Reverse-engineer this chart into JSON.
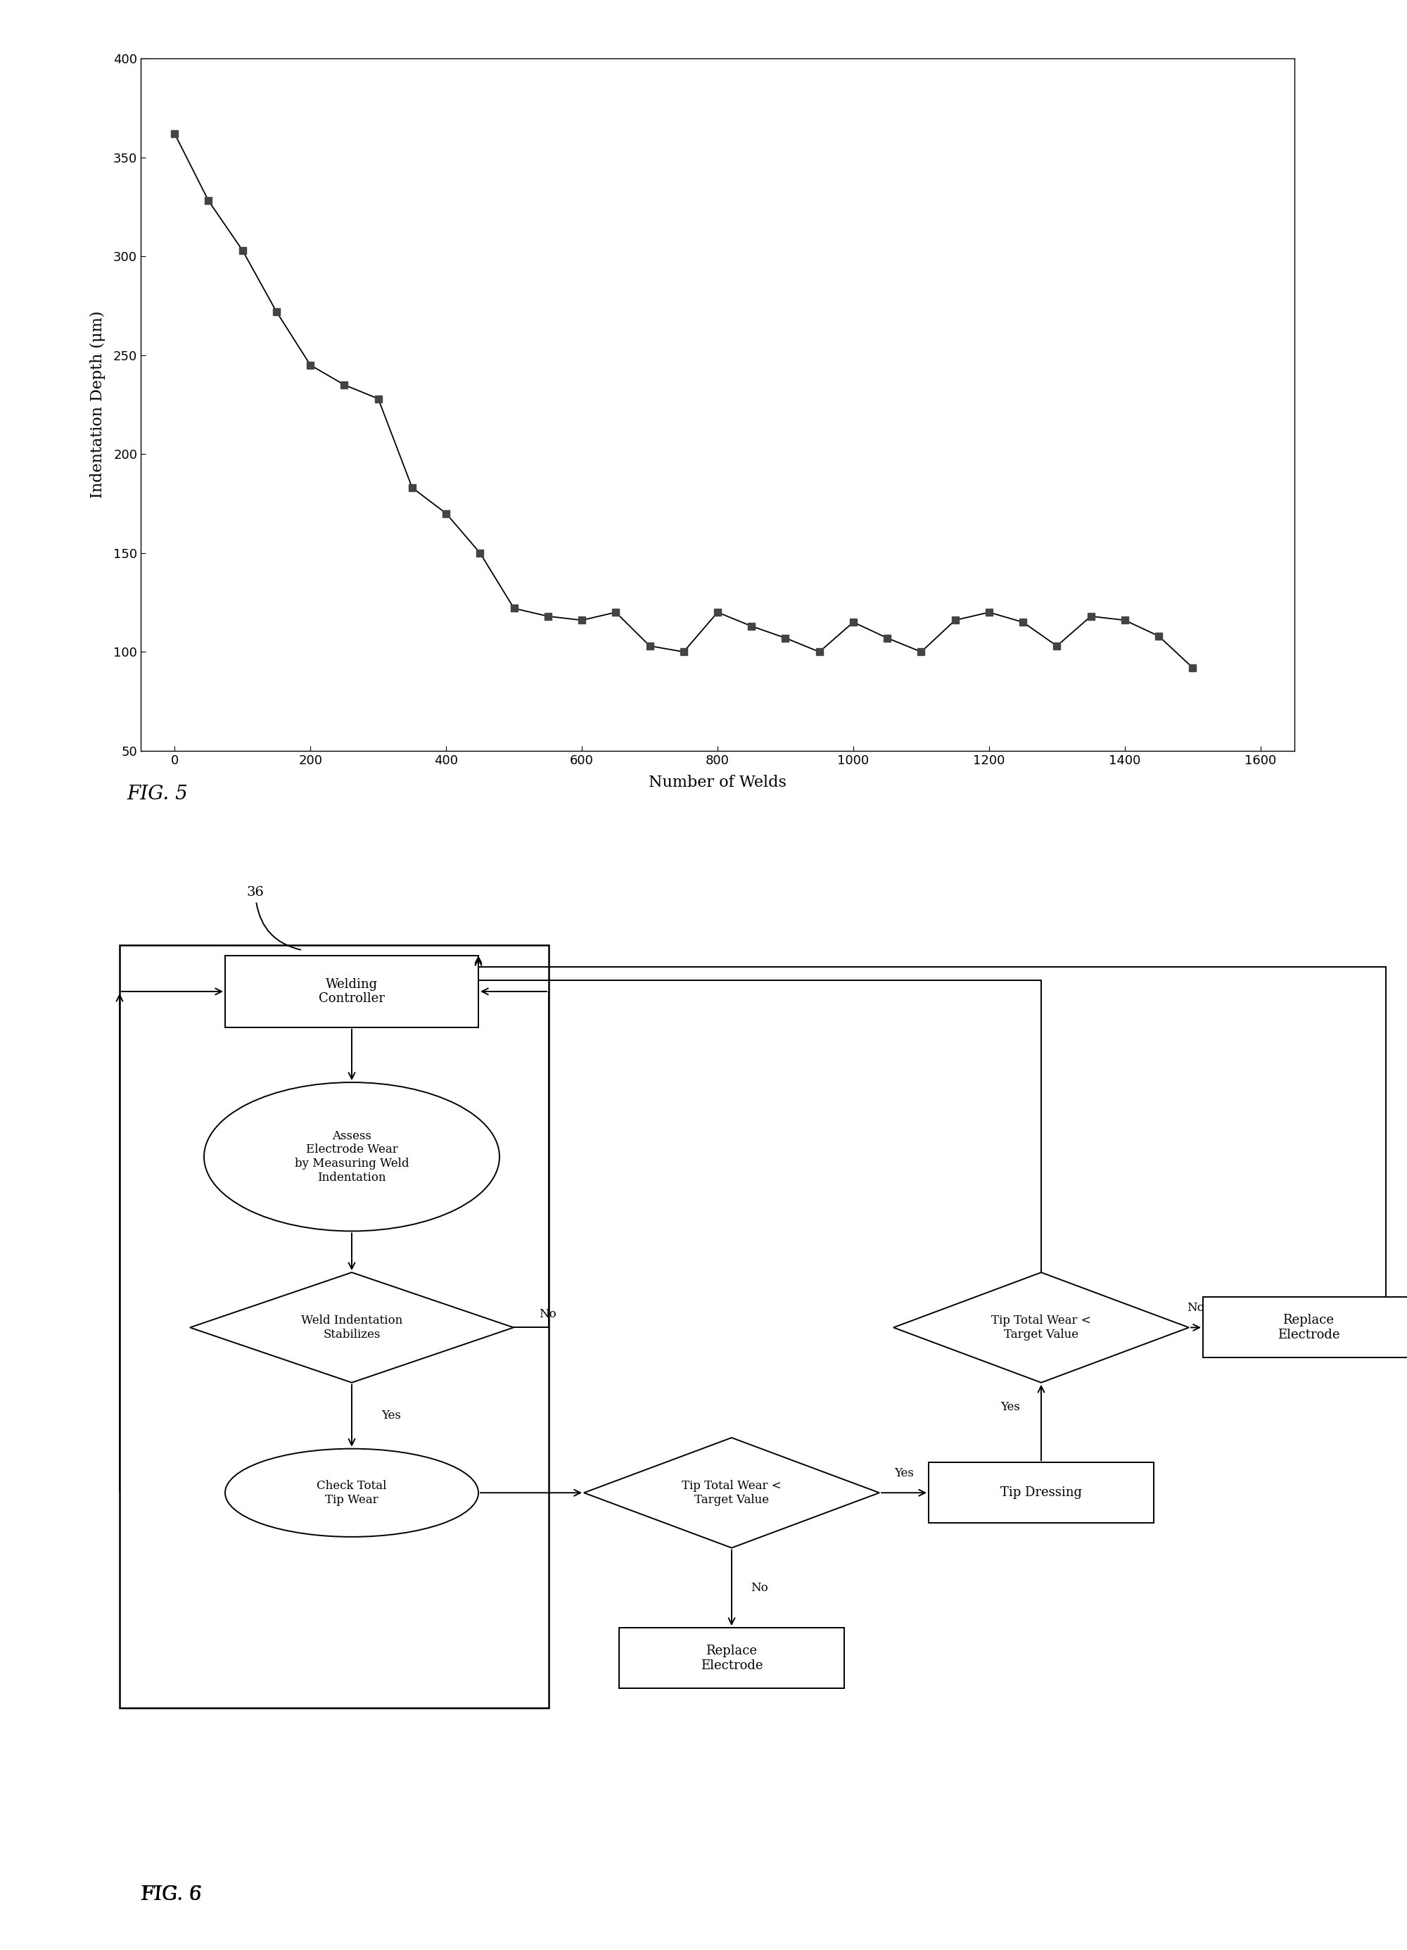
{
  "fig5": {
    "x": [
      0,
      50,
      100,
      150,
      200,
      250,
      300,
      350,
      400,
      450,
      500,
      550,
      600,
      650,
      700,
      750,
      800,
      850,
      900,
      950,
      1000,
      1050,
      1100,
      1150,
      1200,
      1250,
      1300,
      1350,
      1400,
      1450,
      1500
    ],
    "y": [
      362,
      328,
      303,
      272,
      245,
      235,
      228,
      183,
      170,
      150,
      122,
      118,
      116,
      120,
      103,
      100,
      120,
      113,
      107,
      100,
      115,
      107,
      100,
      116,
      120,
      115,
      103,
      118,
      116,
      108,
      92
    ],
    "xlabel": "Number of Welds",
    "ylabel": "Indentation Depth (μm)",
    "xlim": [
      -50,
      1650
    ],
    "ylim": [
      50,
      400
    ],
    "xticks": [
      0,
      200,
      400,
      600,
      800,
      1000,
      1200,
      1400,
      1600
    ],
    "yticks": [
      50,
      100,
      150,
      200,
      250,
      300,
      350,
      400
    ],
    "line_color": "#000000",
    "marker": "s",
    "marker_size": 7,
    "marker_color": "#444444"
  },
  "bg_color": "#ffffff",
  "text_color": "#000000",
  "box_edge_color": "#000000",
  "box_fill_color": "#ffffff"
}
